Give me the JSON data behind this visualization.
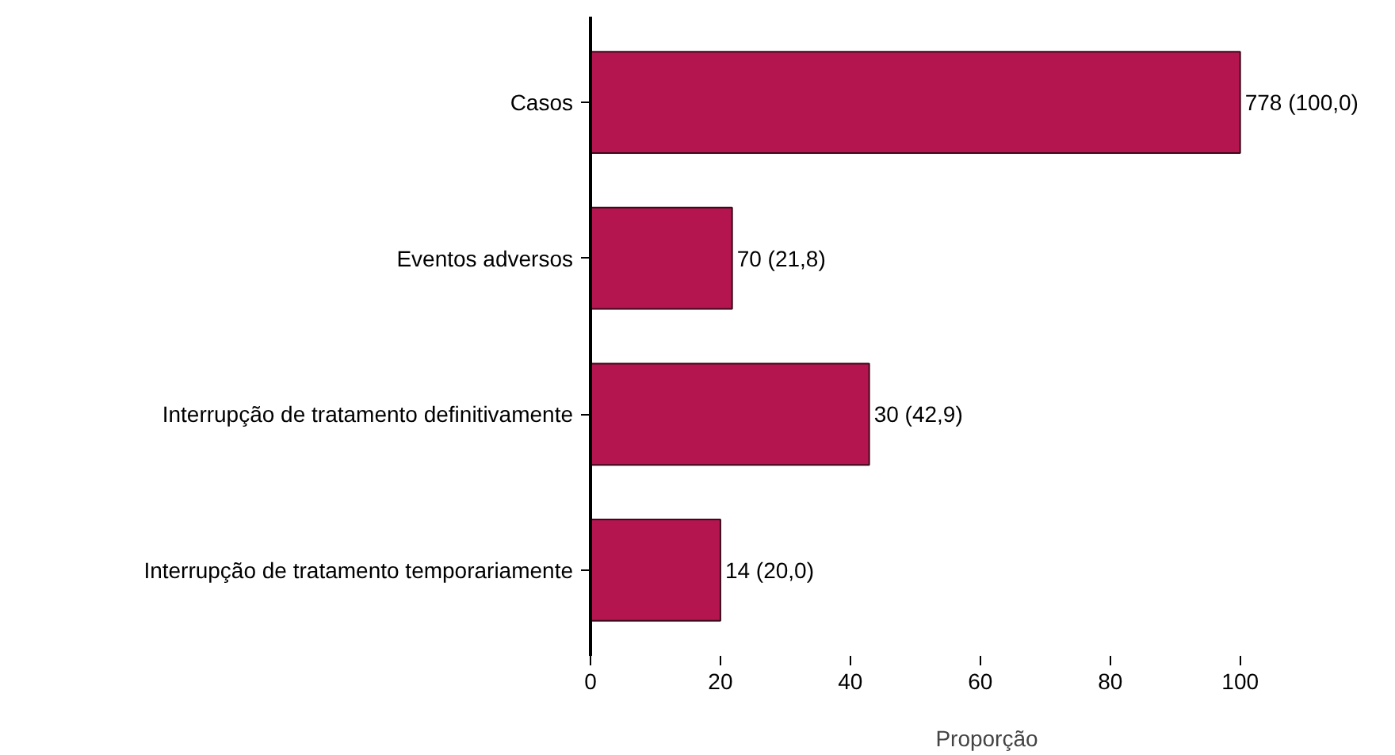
{
  "chart_data": {
    "type": "bar",
    "orientation": "horizontal",
    "xlabel": "Proporção",
    "categories": [
      "Casos",
      "Eventos adversos",
      "Interrupção de tratamento definitivamente",
      "Interrupção de tratamento temporariamente"
    ],
    "values": [
      100,
      21.8,
      42.9,
      20.0
    ],
    "value_labels": [
      "778 (100,0)",
      "70 (21,8)",
      "30 (42,9)",
      "14 (20,0)"
    ],
    "color": "#b5154f",
    "xlim": [
      0,
      100
    ],
    "xticks": [
      0,
      20,
      40,
      60,
      80,
      100
    ],
    "grid": false
  }
}
